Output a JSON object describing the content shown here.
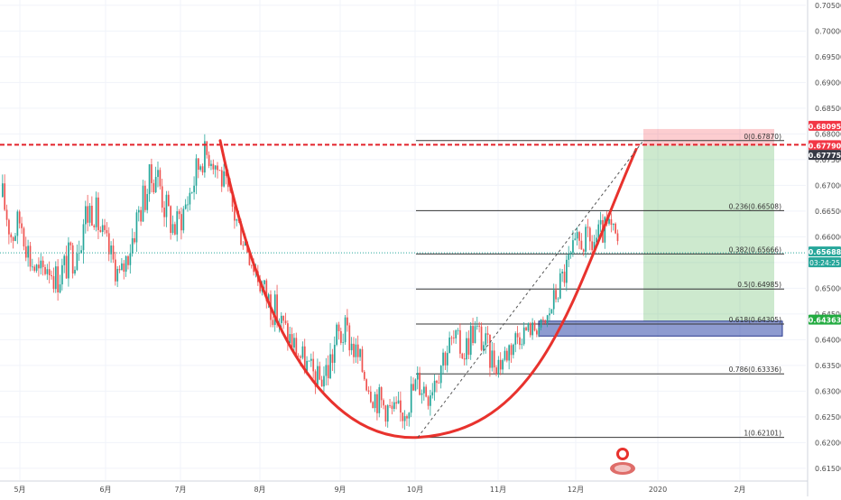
{
  "chart_data": {
    "type": "candlestick",
    "symbol": "",
    "y_axis": {
      "position": "right",
      "ticks": [
        "0.70500",
        "0.70000",
        "0.69500",
        "0.69000",
        "0.68500",
        "0.68000",
        "0.67500",
        "0.67000",
        "0.66500",
        "0.66000",
        "0.65500",
        "0.65000",
        "0.64500",
        "0.64000",
        "0.63500",
        "0.63000",
        "0.62500",
        "0.62000",
        "0.61500"
      ],
      "ylim": [
        0.6125,
        0.7055
      ]
    },
    "x_axis": {
      "ticks": [
        "5月",
        "6月",
        "7月",
        "8月",
        "9月",
        "10月",
        "11月",
        "12月",
        "2020",
        "2月"
      ]
    },
    "price_tags": [
      {
        "value": "0.68095",
        "color": "#f23645"
      },
      {
        "value": "0.67790",
        "color": "#f23645"
      },
      {
        "value": "0.67775",
        "color": "#363a45"
      },
      {
        "value": "0.65688",
        "color": "#26a69a"
      },
      {
        "value": "03:24:25",
        "color": "#26a69a"
      },
      {
        "value": "0.64363",
        "color": "#22ab40"
      }
    ],
    "fibonacci": [
      {
        "label": "0(0.67870)",
        "price": 0.6787
      },
      {
        "label": "0.236(0.66508)",
        "price": 0.66508
      },
      {
        "label": "0.382(0.65666)",
        "price": 0.65666
      },
      {
        "label": "0.5(0.64985)",
        "price": 0.64985
      },
      {
        "label": "0.618(0.64305)",
        "price": 0.64305
      },
      {
        "label": "0.786(0.63336)",
        "price": 0.63336
      },
      {
        "label": "1(0.62101)",
        "price": 0.62101
      }
    ],
    "resistance_line": 0.6779,
    "current_price": 0.65688,
    "position": {
      "entry": 0.67775,
      "stop": 0.68095,
      "target": 0.64363
    },
    "demand_zone": {
      "top": 0.6436,
      "bottom": 0.6407
    },
    "price_path": [
      [
        0.664,
        0.6715
      ],
      [
        0.656,
        0.6645
      ],
      [
        0.66,
        0.667
      ],
      [
        0.652,
        0.66
      ],
      [
        0.649,
        0.656
      ],
      [
        0.6515,
        0.658
      ],
      [
        0.648,
        0.6555
      ],
      [
        0.6505,
        0.6585
      ],
      [
        0.653,
        0.662
      ],
      [
        0.658,
        0.669
      ],
      [
        0.662,
        0.6705
      ],
      [
        0.656,
        0.664
      ],
      [
        0.6525,
        0.6595
      ],
      [
        0.649,
        0.655
      ],
      [
        0.654,
        0.661
      ],
      [
        0.66,
        0.669
      ],
      [
        0.665,
        0.674
      ],
      [
        0.669,
        0.677
      ],
      [
        0.661,
        0.67
      ],
      [
        0.658,
        0.665
      ],
      [
        0.661,
        0.669
      ],
      [
        0.666,
        0.6745
      ],
      [
        0.672,
        0.6795
      ],
      [
        0.673,
        0.6792
      ],
      [
        0.669,
        0.676
      ],
      [
        0.664,
        0.671
      ],
      [
        0.659,
        0.666
      ],
      [
        0.655,
        0.662
      ],
      [
        0.65,
        0.657
      ],
      [
        0.645,
        0.653
      ],
      [
        0.642,
        0.65
      ],
      [
        0.639,
        0.646
      ],
      [
        0.636,
        0.643
      ],
      [
        0.633,
        0.64
      ],
      [
        0.631,
        0.637
      ],
      [
        0.629,
        0.635
      ],
      [
        0.63,
        0.639
      ],
      [
        0.636,
        0.645
      ],
      [
        0.638,
        0.645
      ],
      [
        0.634,
        0.641
      ],
      [
        0.63,
        0.637
      ],
      [
        0.626,
        0.633
      ],
      [
        0.624,
        0.631
      ],
      [
        0.623,
        0.629
      ],
      [
        0.6215,
        0.629
      ],
      [
        0.625,
        0.633
      ],
      [
        0.628,
        0.636
      ],
      [
        0.626,
        0.634
      ],
      [
        0.63,
        0.638
      ],
      [
        0.634,
        0.642
      ],
      [
        0.637,
        0.643
      ],
      [
        0.634,
        0.641
      ],
      [
        0.638,
        0.646
      ],
      [
        0.636,
        0.644
      ],
      [
        0.633,
        0.64
      ],
      [
        0.6325,
        0.6385
      ],
      [
        0.635,
        0.642
      ],
      [
        0.638,
        0.644
      ],
      [
        0.64,
        0.644
      ],
      [
        0.6405,
        0.644
      ],
      [
        0.641,
        0.645
      ],
      [
        0.645,
        0.651
      ],
      [
        0.649,
        0.656
      ],
      [
        0.652,
        0.66
      ],
      [
        0.656,
        0.663
      ],
      [
        0.6545,
        0.662
      ],
      [
        0.657,
        0.6635
      ],
      [
        0.658,
        0.665
      ],
      [
        0.656,
        0.662
      ]
    ]
  }
}
